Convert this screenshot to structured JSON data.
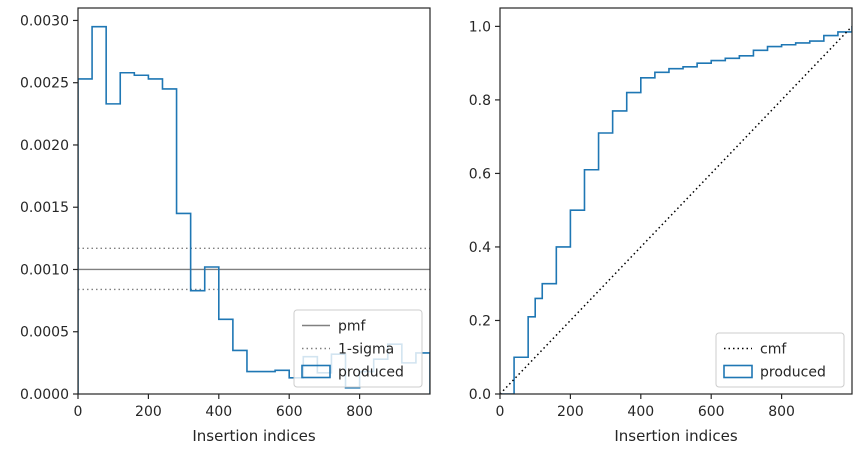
{
  "chart_data": [
    {
      "type": "histogram",
      "xlabel": "Insertion indices",
      "ylabel": "",
      "xlim": [
        0,
        1000
      ],
      "ylim": [
        0,
        0.0031
      ],
      "xticks": [
        0,
        200,
        400,
        600,
        800
      ],
      "xtick_labels": [
        "0",
        "200",
        "400",
        "600",
        "800"
      ],
      "yticks": [
        0,
        0.0005,
        0.001,
        0.0015,
        0.002,
        0.0025,
        0.003
      ],
      "ytick_labels": [
        "0.0000",
        "0.0005",
        "0.0010",
        "0.0015",
        "0.0020",
        "0.0025",
        "0.0030"
      ],
      "grid": false,
      "legend_position": "lower right",
      "bin_edges": [
        0,
        40,
        80,
        120,
        160,
        200,
        240,
        280,
        320,
        360,
        400,
        440,
        480,
        520,
        560,
        600,
        640,
        680,
        720,
        760,
        800,
        840,
        880,
        920,
        960,
        1000
      ],
      "series": [
        {
          "name": "produced",
          "style": "step",
          "color": "#1f77b4",
          "values": [
            0.00253,
            0.00295,
            0.00233,
            0.00258,
            0.00256,
            0.00253,
            0.00245,
            0.00145,
            0.00083,
            0.00102,
            0.0006,
            0.00035,
            0.00018,
            0.00018,
            0.00019,
            0.00013,
            0.0003,
            0.00017,
            0.00032,
            5e-05,
            0.00018,
            0.00028,
            0.0004,
            0.00025,
            0.00033
          ]
        }
      ],
      "hlines": [
        {
          "name": "pmf",
          "y": 0.001,
          "color": "#808080",
          "style": "solid"
        },
        {
          "name": "1-sigma",
          "y": 0.00117,
          "color": "#808080",
          "style": "dotted"
        },
        {
          "name": "",
          "y": 0.00084,
          "color": "#808080",
          "style": "dotted"
        }
      ],
      "legend": [
        "pmf",
        "1-sigma",
        "produced"
      ]
    },
    {
      "type": "line",
      "xlabel": "Insertion indices",
      "ylabel": "",
      "xlim": [
        0,
        1000
      ],
      "ylim": [
        0,
        1.05
      ],
      "xticks": [
        0,
        200,
        400,
        600,
        800
      ],
      "xtick_labels": [
        "0",
        "200",
        "400",
        "600",
        "800"
      ],
      "yticks": [
        0,
        0.2,
        0.4,
        0.6,
        0.8,
        1.0
      ],
      "ytick_labels": [
        "0.0",
        "0.2",
        "0.4",
        "0.6",
        "0.8",
        "1.0"
      ],
      "grid": false,
      "legend_position": "lower right",
      "series": [
        {
          "name": "produced",
          "style": "step",
          "color": "#1f77b4",
          "x": [
            0,
            40,
            80,
            100,
            120,
            160,
            200,
            240,
            280,
            320,
            360,
            400,
            440,
            480,
            520,
            560,
            600,
            640,
            680,
            720,
            760,
            800,
            840,
            880,
            920,
            960,
            1000
          ],
          "y": [
            0,
            0.1,
            0.21,
            0.26,
            0.3,
            0.4,
            0.5,
            0.61,
            0.71,
            0.77,
            0.82,
            0.86,
            0.875,
            0.885,
            0.89,
            0.9,
            0.907,
            0.913,
            0.92,
            0.935,
            0.945,
            0.95,
            0.955,
            0.96,
            0.975,
            0.985,
            1.0
          ]
        },
        {
          "name": "cmf",
          "style": "dotted",
          "color": "#000000",
          "x": [
            0,
            1000
          ],
          "y": [
            0,
            1.0
          ]
        }
      ],
      "legend": [
        "cmf",
        "produced"
      ]
    }
  ]
}
